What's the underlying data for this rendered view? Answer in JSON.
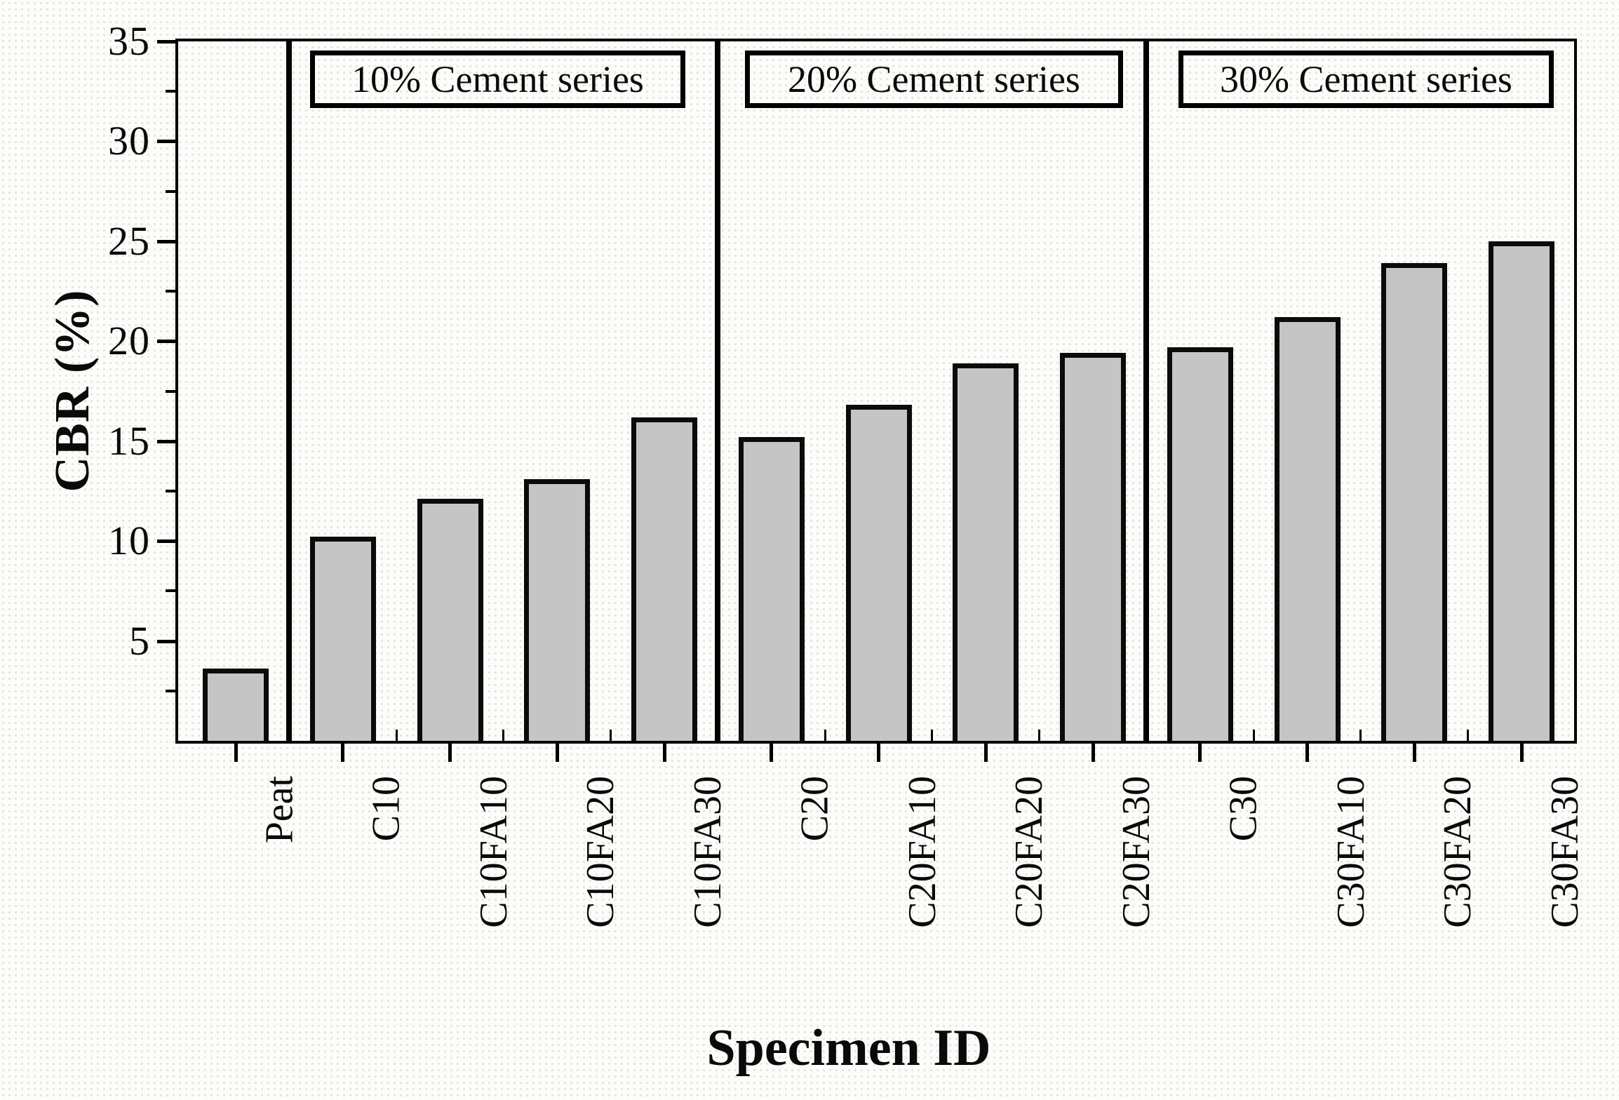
{
  "figure": {
    "background_color": "#fcfcfa",
    "bar_fill_color": "#c5c5c5",
    "bar_border_color": "#0b0b0b",
    "axis_color": "#000000"
  },
  "chart_data": {
    "type": "bar",
    "title": "",
    "xlabel": "Specimen ID",
    "ylabel": "CBR (%)",
    "ylim": [
      0,
      35
    ],
    "y_major_ticks": [
      5,
      10,
      15,
      20,
      25,
      30,
      35
    ],
    "y_minor_ticks": [
      2.5,
      7.5,
      12.5,
      17.5,
      22.5,
      27.5,
      32.5
    ],
    "grid": false,
    "legend": "none",
    "categories": [
      "Peat",
      "C10",
      "C10FA10",
      "C10FA20",
      "C10FA30",
      "C20",
      "C20FA10",
      "C20FA20",
      "C20FA30",
      "C30",
      "C30FA10",
      "C30FA20",
      "C30FA30"
    ],
    "values": [
      3.6,
      10.2,
      12.1,
      13.1,
      16.2,
      15.2,
      16.8,
      18.9,
      19.4,
      19.7,
      21.2,
      23.9,
      25.0
    ],
    "dividers_after_category_index": [
      0,
      4,
      8
    ],
    "sections": [
      {
        "label": "10% Cement series",
        "categories": [
          "C10",
          "C10FA10",
          "C10FA20",
          "C10FA30"
        ]
      },
      {
        "label": "20% Cement series",
        "categories": [
          "C20",
          "C20FA10",
          "C20FA20",
          "C20FA30"
        ]
      },
      {
        "label": "30% Cement series",
        "categories": [
          "C30",
          "C30FA10",
          "C30FA20",
          "C30FA30"
        ]
      }
    ]
  }
}
